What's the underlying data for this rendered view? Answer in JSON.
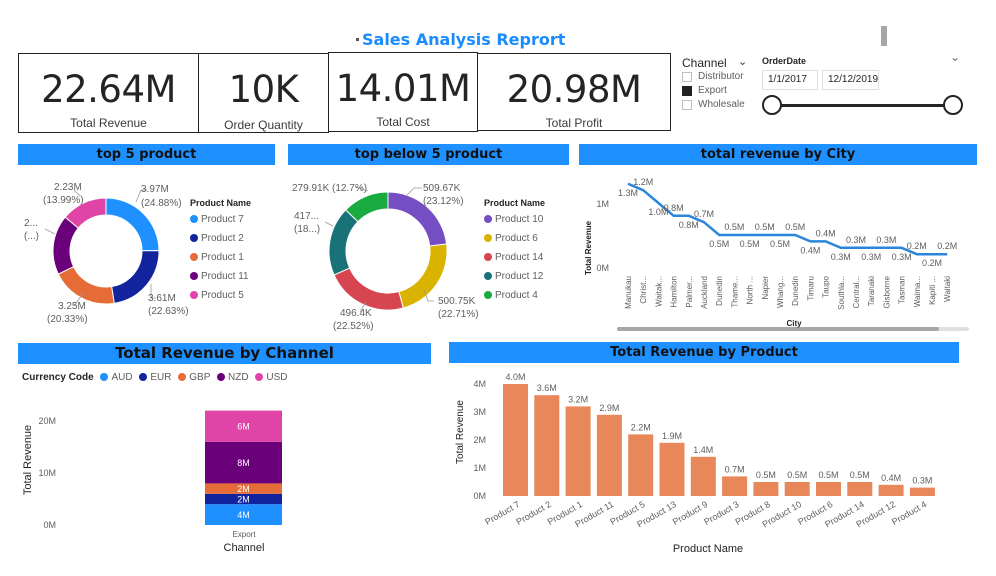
{
  "report_title": "Sales Analysis Reprort",
  "kpis": [
    {
      "value": "22.64M",
      "label": "Total Revenue"
    },
    {
      "value": "10K",
      "label": "Order Quantity"
    },
    {
      "value": "14.01M",
      "label": "Total Cost"
    },
    {
      "value": "20.98M",
      "label": "Total Profit"
    }
  ],
  "channel_slicer": {
    "title": "Channel",
    "options": [
      {
        "label": "Distributor",
        "checked": false
      },
      {
        "label": "Export",
        "checked": true
      },
      {
        "label": "Wholesale",
        "checked": false
      }
    ]
  },
  "date_slicer": {
    "title": "OrderDate",
    "start": "1/1/2017",
    "end": "12/12/2019"
  },
  "colors": {
    "accent": "#1e90ff",
    "title": "#1a8cff",
    "bar": "#e8875a",
    "line": "#2b86d9"
  },
  "donut1": {
    "title": "top 5 product",
    "legend_title": "Product Name",
    "items": [
      {
        "label": "Product 7",
        "color": "#1e90ff",
        "value": 24.88
      },
      {
        "label": "Product 2",
        "color": "#12239e",
        "value": 22.63
      },
      {
        "label": "Product 1",
        "color": "#e66c37",
        "value": 20.33
      },
      {
        "label": "Product 11",
        "color": "#6b007b",
        "value": 18.17
      },
      {
        "label": "Product 5",
        "color": "#e044a7",
        "value": 13.99
      }
    ],
    "labels": {
      "p7_val": "3.97M",
      "p7_pct": "(24.88%)",
      "p2_val": "3.61M",
      "p2_pct": "(22.63%)",
      "p1_val": "3.25M",
      "p1_pct": "(20.33%)",
      "p11_val": "2...",
      "p11_pct": "(...)",
      "p5_val": "2.23M",
      "p5_pct": "(13.99%)"
    }
  },
  "donut2": {
    "title": "top below 5 product",
    "legend_title": "Product Name",
    "items": [
      {
        "label": "Product 10",
        "color": "#744ec2",
        "value": 23.12
      },
      {
        "label": "Product 6",
        "color": "#d9b300",
        "value": 22.71
      },
      {
        "label": "Product 14",
        "color": "#d64550",
        "value": 22.52
      },
      {
        "label": "Product 12",
        "color": "#197278",
        "value": 18.93
      },
      {
        "label": "Product 4",
        "color": "#1aab40",
        "value": 12.72
      }
    ],
    "labels": {
      "p10_val": "509.67K",
      "p10_pct": "(23.12%)",
      "p6_val": "500.75K",
      "p6_pct": "(22.71%)",
      "p14_val": "496.4K",
      "p14_pct": "(22.52%)",
      "p12_val": "417...",
      "p12_pct": "(18...)",
      "p4_full": "279.91K (12.7%)"
    }
  },
  "city_chart": {
    "title": "total revenue by City",
    "xlabel": "City",
    "ylabel": "Total Revenue",
    "yticks": [
      "1M",
      "0M"
    ],
    "cities": [
      "Manukau",
      "Christ...",
      "Waitak...",
      "Hamilton",
      "Palmer...",
      "Auckland",
      "Dunedin",
      "Thame...",
      "North ...",
      "Napier",
      "Whang...",
      "Dunedin",
      "Timaru",
      "Taupo",
      "Southla...",
      "Central...",
      "Taranaki",
      "Gisborne",
      "Tasman",
      "Waima...",
      "Kapiti ...",
      "Waitaki"
    ],
    "values": [
      1.3,
      1.2,
      1.0,
      0.8,
      0.8,
      0.7,
      0.5,
      0.5,
      0.5,
      0.5,
      0.5,
      0.5,
      0.4,
      0.4,
      0.3,
      0.3,
      0.3,
      0.3,
      0.3,
      0.2,
      0.2,
      0.2
    ],
    "value_labels": [
      "1.3M",
      "1.2M",
      "1.0M",
      "0.8M",
      "0.8M",
      "0.7M",
      "0.5M",
      "0.5M",
      "0.5M",
      "0.5M",
      "0.5M",
      "0.5M",
      "0.4M",
      "0.4M",
      "0.3M",
      "0.3M",
      "0.3M",
      "0.3M",
      "0.3M",
      "0.2M",
      "0.2M",
      "0.2M"
    ]
  },
  "channel_chart": {
    "title": "Total Revenue by Channel",
    "legend_title": "Currency Code",
    "legend": [
      {
        "label": "AUD",
        "color": "#1e90ff"
      },
      {
        "label": "EUR",
        "color": "#12239e"
      },
      {
        "label": "GBP",
        "color": "#e66c37"
      },
      {
        "label": "NZD",
        "color": "#6b007b"
      },
      {
        "label": "USD",
        "color": "#e044a7"
      }
    ],
    "xlabel": "Channel",
    "ylabel": "Total Revenue",
    "yticks": [
      "20M",
      "10M",
      "0M"
    ],
    "category": "Export"
  },
  "chart_data": [
    {
      "type": "bar",
      "title": "Total Revenue by Product",
      "xlabel": "Product Name",
      "ylabel": "Total Revenue",
      "categories": [
        "Product 7",
        "Product 2",
        "Product 1",
        "Product 11",
        "Product 5",
        "Product 13",
        "Product 9",
        "Product 3",
        "Product 8",
        "Product 10",
        "Product 6",
        "Product 14",
        "Product 12",
        "Product 4"
      ],
      "values": [
        4.0,
        3.6,
        3.2,
        2.9,
        2.2,
        1.9,
        1.4,
        0.7,
        0.5,
        0.5,
        0.5,
        0.5,
        0.4,
        0.3
      ],
      "value_labels": [
        "4.0M",
        "3.6M",
        "3.2M",
        "2.9M",
        "2.2M",
        "1.9M",
        "1.4M",
        "0.7M",
        "0.5M",
        "0.5M",
        "0.5M",
        "0.5M",
        "0.4M",
        "0.3M"
      ],
      "yticks": [
        "4M",
        "3M",
        "2M",
        "1M",
        "0M"
      ],
      "ylim": [
        0,
        4
      ]
    },
    {
      "type": "bar",
      "title": "Total Revenue by Channel",
      "categories": [
        "Export"
      ],
      "series": [
        {
          "name": "AUD",
          "values": [
            4
          ],
          "label": "4M"
        },
        {
          "name": "EUR",
          "values": [
            2
          ],
          "label": "2M"
        },
        {
          "name": "GBP",
          "values": [
            2
          ],
          "label": "2M"
        },
        {
          "name": "NZD",
          "values": [
            8
          ],
          "label": "8M"
        },
        {
          "name": "USD",
          "values": [
            6
          ],
          "label": "6M"
        }
      ],
      "ylim": [
        0,
        22.64
      ]
    }
  ]
}
